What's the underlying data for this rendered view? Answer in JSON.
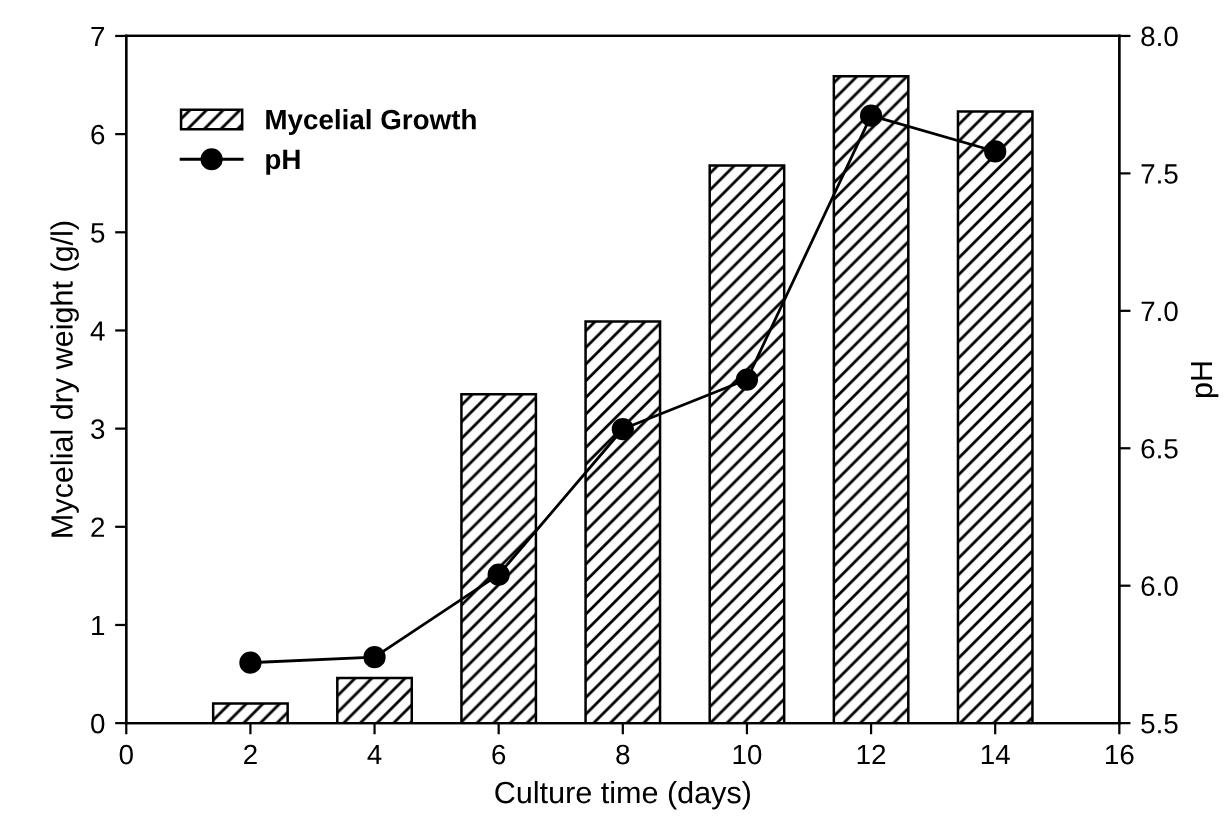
{
  "chart_data": {
    "type": "bar",
    "xlabel": "Culture time (days)",
    "ylabel": "Mycelial dry weight (g/l)",
    "y2label": "pH",
    "x": [
      2,
      4,
      6,
      8,
      10,
      12,
      14
    ],
    "series": [
      {
        "name": "Mycelial Growth",
        "color": "#000000",
        "values": [
          0.2,
          0.46,
          3.35,
          4.09,
          5.68,
          6.59,
          6.23
        ]
      },
      {
        "name": "pH",
        "type": "line",
        "axis": "y2",
        "color": "#000000",
        "marker": "circle",
        "values": [
          5.72,
          5.74,
          6.04,
          6.57,
          6.75,
          7.71,
          7.58
        ]
      }
    ],
    "xlim": [
      0,
      16
    ],
    "xticks": [
      0,
      2,
      4,
      6,
      8,
      10,
      12,
      14,
      16
    ],
    "ylim": [
      0,
      7
    ],
    "yticks": [
      0,
      1,
      2,
      3,
      4,
      5,
      6,
      7
    ],
    "y2lim": [
      5.5,
      8.0
    ],
    "y2ticks": [
      {
        "value": 5.5,
        "label": "5.5"
      },
      {
        "value": 6.0,
        "label": "6.0"
      },
      {
        "value": 6.5,
        "label": "6.5"
      },
      {
        "value": 7.0,
        "label": "7.0"
      },
      {
        "value": 7.5,
        "label": "7.5"
      },
      {
        "value": 8.0,
        "label": "8.0"
      }
    ],
    "legend": "top left",
    "grid": false
  }
}
